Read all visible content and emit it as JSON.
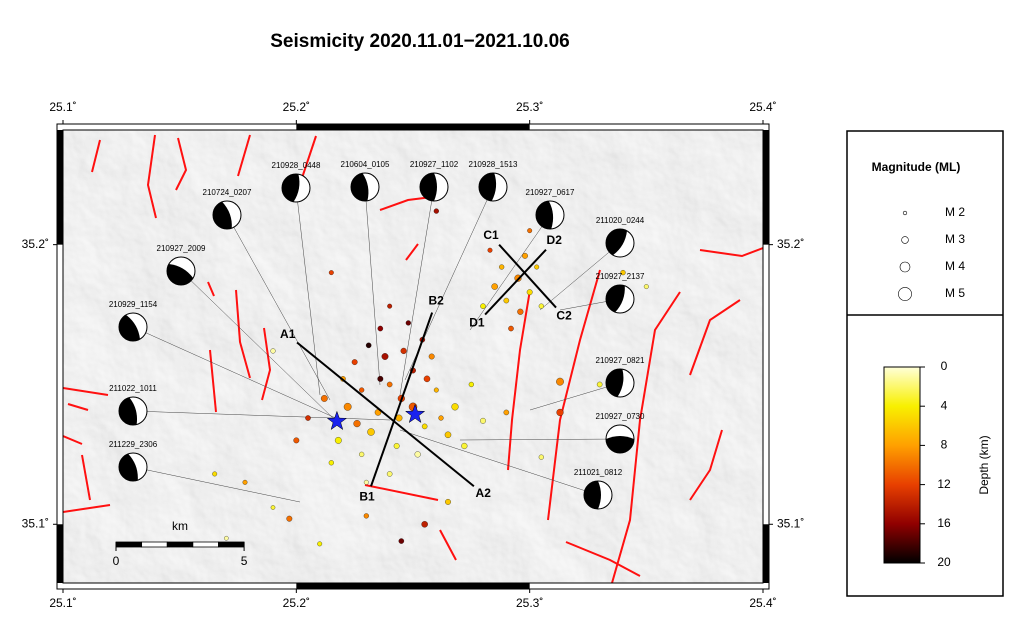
{
  "title": "Seismicity 2020.11.01−2021.10.06",
  "map": {
    "xlim": [
      25.1,
      25.4
    ],
    "ylim": [
      35.079,
      35.241
    ],
    "xticks": [
      {
        "value": 25.1,
        "label": "25.1˚"
      },
      {
        "value": 25.2,
        "label": "25.2˚"
      },
      {
        "value": 25.3,
        "label": "25.3˚"
      },
      {
        "value": 25.4,
        "label": "25.4˚"
      }
    ],
    "yticks": [
      {
        "value": 35.1,
        "label": "35.1˚"
      },
      {
        "value": 35.2,
        "label": "35.2˚"
      }
    ],
    "events": {
      "lon": [
        25.24,
        25.245,
        25.235,
        25.25,
        25.228,
        25.238,
        25.246,
        25.232,
        25.255,
        25.222,
        25.26,
        25.243,
        25.218,
        25.228,
        25.252,
        25.265,
        25.236,
        25.248,
        25.225,
        25.212,
        25.205,
        25.258,
        25.268,
        25.272,
        25.24,
        25.23,
        25.215,
        25.25,
        25.236,
        25.244,
        25.226,
        25.262,
        25.254,
        25.24,
        25.231,
        25.256,
        25.22,
        25.2,
        25.275,
        25.28,
        25.285,
        25.29,
        25.295,
        25.3,
        25.288,
        25.296,
        25.28,
        25.303,
        25.292,
        25.305,
        25.298,
        25.283,
        25.19,
        25.165,
        25.19,
        25.197,
        25.178,
        25.313,
        25.313,
        25.33,
        25.335,
        25.34,
        25.255,
        25.245,
        25.23,
        25.21,
        25.265,
        25.29,
        25.305,
        25.215,
        25.26,
        25.3,
        25.17,
        25.35
      ],
      "lat": [
        35.15,
        35.145,
        35.14,
        35.155,
        35.148,
        35.16,
        35.162,
        35.133,
        35.135,
        35.142,
        35.148,
        35.128,
        35.13,
        35.125,
        35.125,
        35.132,
        35.17,
        35.172,
        35.158,
        35.145,
        35.138,
        35.16,
        35.142,
        35.128,
        35.118,
        35.115,
        35.122,
        35.142,
        35.152,
        35.138,
        35.136,
        35.138,
        35.166,
        35.178,
        35.164,
        35.152,
        35.152,
        35.13,
        35.15,
        35.137,
        35.185,
        35.18,
        35.188,
        35.183,
        35.192,
        35.176,
        35.178,
        35.192,
        35.17,
        35.178,
        35.196,
        35.198,
        35.162,
        35.118,
        35.106,
        35.102,
        35.115,
        35.151,
        35.14,
        35.15,
        35.178,
        35.19,
        35.1,
        35.094,
        35.103,
        35.093,
        35.108,
        35.14,
        35.124,
        35.19,
        35.212,
        35.205,
        35.095,
        35.185
      ],
      "depth": [
        10,
        12,
        8,
        14,
        11,
        15,
        13,
        6,
        5,
        9,
        7,
        3,
        4,
        2,
        1,
        6,
        16,
        17,
        12,
        10,
        13,
        9,
        5,
        3,
        2,
        1,
        4,
        11,
        18,
        7,
        10,
        8,
        15,
        14,
        19,
        12,
        8,
        11,
        4,
        2,
        8,
        6,
        9,
        5,
        7,
        10,
        4,
        6,
        11,
        3,
        8,
        12,
        1,
        5,
        3,
        10,
        8,
        9,
        12,
        3,
        10,
        6,
        14,
        17,
        9,
        4,
        6,
        8,
        2,
        12,
        15,
        10,
        1,
        2
      ],
      "mag": [
        2.5,
        3.0,
        2.8,
        2.6,
        2.4,
        2.9,
        2.7,
        3.1,
        2.5,
        3.2,
        2.3,
        2.6,
        2.9,
        2.4,
        2.7,
        2.8,
        2.5,
        2.4,
        2.6,
        2.9,
        2.5,
        2.6,
        3.0,
        2.7,
        2.5,
        2.3,
        2.4,
        3.4,
        2.6,
        2.9,
        3.0,
        2.4,
        2.5,
        2.3,
        2.5,
        2.8,
        2.5,
        2.6,
        2.4,
        2.6,
        2.8,
        2.5,
        3.0,
        2.6,
        2.4,
        2.7,
        2.5,
        2.3,
        2.5,
        2.4,
        2.6,
        2.3,
        2.4,
        2.3,
        2.2,
        2.6,
        2.3,
        3.2,
        3.0,
        2.5,
        2.4,
        2.4,
        2.8,
        2.5,
        2.4,
        2.3,
        2.6,
        2.5,
        2.4,
        2.3,
        2.4,
        2.3,
        2.2,
        2.3
      ]
    },
    "mainshocks": {
      "lon": [
        25.2174,
        25.2509
      ],
      "lat": [
        35.1368,
        35.1393
      ]
    },
    "profiles": [
      {
        "start": "A1",
        "end": "A2",
        "lon": [
          25.2003,
          25.2761
        ],
        "lat": [
          35.165,
          35.1136
        ]
      },
      {
        "start": "B1",
        "end": "B2",
        "lon": [
          25.232,
          25.2582
        ],
        "lat": [
          35.1136,
          35.1757
        ]
      },
      {
        "start": "C1",
        "end": "C2",
        "lon": [
          25.2869,
          25.3113
        ],
        "lat": [
          35.2,
          35.1775
        ]
      },
      {
        "start": "D1",
        "end": "D2",
        "lon": [
          25.2809,
          25.307
        ],
        "lat": [
          35.175,
          35.1982
        ]
      }
    ],
    "mechanisms": [
      "210928_0448",
      "210604_0105",
      "210927_1102",
      "210928_1513",
      "210724_0207",
      "210927_0617",
      "211020_0244",
      "210927_2009",
      "210927_2137",
      "210929_1154",
      "210927_0821",
      "211022_1011",
      "210927_0730",
      "211229_2306",
      "211021_0812"
    ]
  },
  "magnitude_legend": {
    "title": "Magnitude (ML)",
    "labels": [
      "M 2",
      "M 3",
      "M 4",
      "M 5"
    ],
    "values": [
      2,
      3,
      4,
      5
    ]
  },
  "depth_colorbar": {
    "label": "Depth (km)",
    "lim": [
      0,
      20
    ],
    "ticks": [
      0,
      4,
      8,
      12,
      16,
      20
    ]
  },
  "scale_bar": {
    "unit": "km",
    "ticks": [
      0,
      5
    ]
  }
}
